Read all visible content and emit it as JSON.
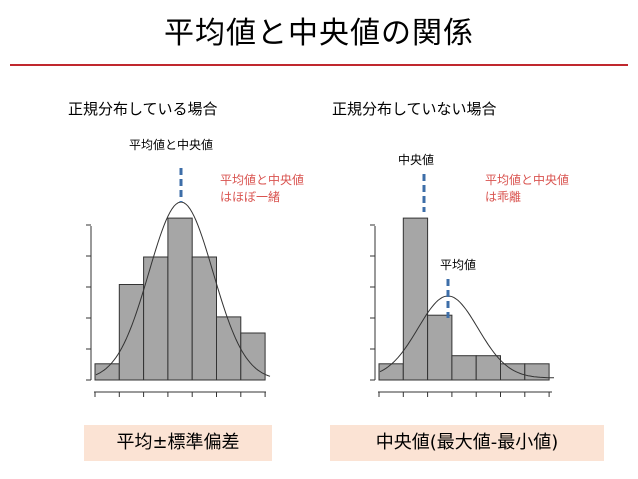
{
  "slide": {
    "title": "平均値と中央値の関係",
    "accent_color": "#c0282e",
    "bar_color": "#a6a6a6",
    "marker_color": "#3d6ea8",
    "box_color": "#fbe3d4"
  },
  "panels": [
    {
      "heading": "正規分布している場合",
      "marker_label": "平均値と中央値",
      "note_lines": [
        "平均値と中央値",
        "はほぼ一緒"
      ],
      "bottom_label": "平均±標準偏差"
    },
    {
      "heading": "正規分布していない場合",
      "median_label": "中央値",
      "mean_label": "平均値",
      "note_lines": [
        "平均値と中央値",
        "は乖離"
      ],
      "bottom_label": "中央値(最大値-最小値)"
    }
  ],
  "chart_data": [
    {
      "type": "bar",
      "distribution": "normal",
      "values": [
        1,
        5.9,
        7.6,
        10,
        7.6,
        3.9,
        2.9
      ],
      "curve": "normal-fit",
      "marker": "mean ≈ median",
      "ylim": [
        0,
        10.5
      ],
      "grid": false
    },
    {
      "type": "bar",
      "distribution": "skewed",
      "values": [
        1,
        10,
        4,
        1.5,
        1.5,
        1,
        1
      ],
      "curve": "normal-fit",
      "marker": "median and mean shown separately",
      "ylim": [
        0,
        10.5
      ],
      "grid": false
    }
  ]
}
